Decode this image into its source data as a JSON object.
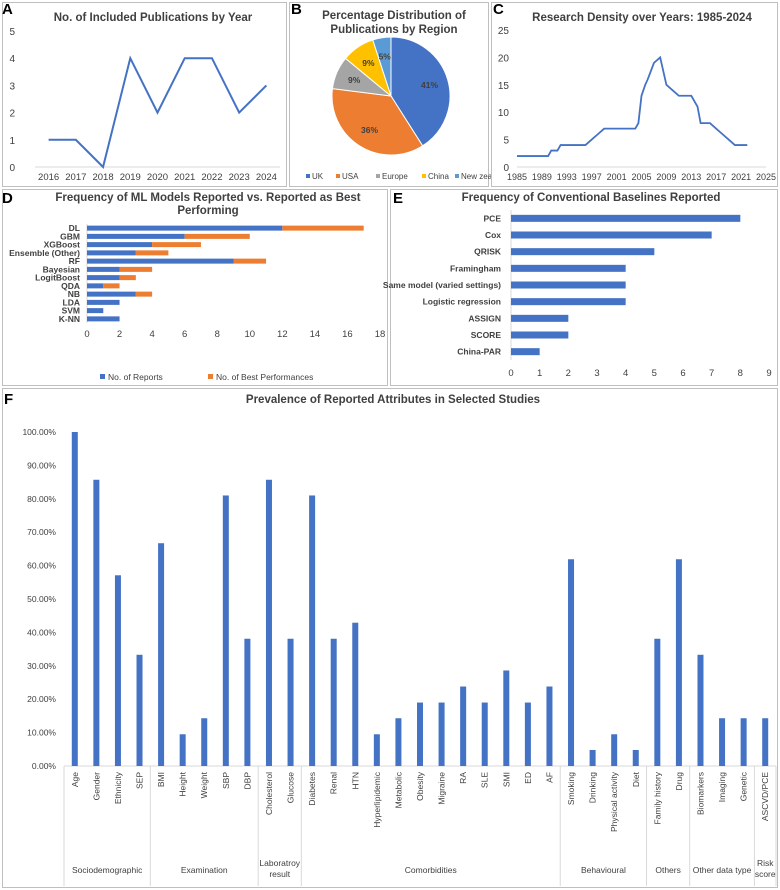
{
  "colors": {
    "blue": "#4472c4",
    "orange": "#ed7d31",
    "gray": "#a5a5a5",
    "gold": "#ffc000",
    "skyblue": "#5b9bd5",
    "axis": "#d9d9d9",
    "grid": "#d9d9d9",
    "text": "#404040"
  },
  "panels": {
    "a": "A",
    "b": "B",
    "c": "C",
    "d": "D",
    "e": "E",
    "f": "F"
  },
  "chart_data": [
    {
      "id": "A",
      "type": "line",
      "title": "No. of Included Publications by Year",
      "x": [
        "2016",
        "2017",
        "2018",
        "2019",
        "2020",
        "2021",
        "2022",
        "2023",
        "2024"
      ],
      "values": [
        1,
        1,
        0,
        4,
        2,
        4,
        4,
        2,
        3
      ],
      "ylim": [
        0,
        5
      ],
      "yticks": [
        "0",
        "1",
        "2",
        "3",
        "4",
        "5"
      ],
      "grid": false
    },
    {
      "id": "B",
      "type": "pie",
      "title": "Percentage Distribution of Publications by Region",
      "labels": [
        "UK",
        "USA",
        "Europe",
        "China",
        "New zealand"
      ],
      "values": [
        41,
        36,
        9,
        9,
        5
      ],
      "data_labels": [
        "41%",
        "36%",
        "9%",
        "9%",
        "5%"
      ],
      "legend": "bottom"
    },
    {
      "id": "C",
      "type": "line",
      "title": "Research Density over Years: 1985-2024",
      "xticks": [
        "1985",
        "1989",
        "1993",
        "1997",
        "2001",
        "2005",
        "2009",
        "2013",
        "2017",
        "2021",
        "2025"
      ],
      "points": [
        [
          1985,
          2
        ],
        [
          1986,
          2
        ],
        [
          1987,
          2
        ],
        [
          1988,
          2
        ],
        [
          1989,
          2
        ],
        [
          1990,
          2
        ],
        [
          1990.5,
          3
        ],
        [
          1991,
          3
        ],
        [
          1991.5,
          3
        ],
        [
          1992,
          4
        ],
        [
          1993,
          4
        ],
        [
          1994,
          4
        ],
        [
          1995,
          4
        ],
        [
          1996,
          4
        ],
        [
          1997,
          5
        ],
        [
          1998,
          6
        ],
        [
          1999,
          7
        ],
        [
          2000,
          7
        ],
        [
          2001,
          7
        ],
        [
          2002,
          7
        ],
        [
          2003,
          7
        ],
        [
          2004,
          7
        ],
        [
          2004.5,
          8
        ],
        [
          2005,
          13
        ],
        [
          2005.6,
          15
        ],
        [
          2006,
          16
        ],
        [
          2007,
          19
        ],
        [
          2008,
          20
        ],
        [
          2009,
          15
        ],
        [
          2010,
          14
        ],
        [
          2011,
          13
        ],
        [
          2012,
          13
        ],
        [
          2013,
          13
        ],
        [
          2014,
          11
        ],
        [
          2014.5,
          8
        ],
        [
          2015,
          8
        ],
        [
          2016,
          8
        ],
        [
          2017,
          7
        ],
        [
          2018,
          6
        ],
        [
          2019,
          5
        ],
        [
          2020,
          4
        ],
        [
          2021,
          4
        ],
        [
          2022,
          4
        ]
      ],
      "xlim": [
        1985,
        2025
      ],
      "ylim": [
        0,
        25
      ],
      "yticks": [
        "0",
        "5",
        "10",
        "15",
        "20",
        "25"
      ],
      "grid": false
    },
    {
      "id": "D",
      "type": "bar",
      "orientation": "horizontal",
      "stacked": true,
      "title": "Frequency of ML Models Reported vs. Reported as Best Performing",
      "title_lines": [
        "Frequency of ML Models Reported vs. Reported as Best",
        "Performing"
      ],
      "categories": [
        "DL",
        "GBM",
        "XGBoost",
        "Ensemble (Other)",
        "RF",
        "Bayesian",
        "LogitBoost",
        "QDA",
        "NB",
        "LDA",
        "SVM",
        "K-NN"
      ],
      "series": [
        {
          "name": "No. of Reports",
          "values": [
            12,
            6,
            4,
            3,
            9,
            2,
            2,
            1,
            3,
            2,
            1,
            2
          ]
        },
        {
          "name": "No. of Best Performances",
          "values": [
            5,
            4,
            3,
            2,
            2,
            2,
            1,
            1,
            1,
            0,
            0,
            0
          ]
        }
      ],
      "xlim": [
        0,
        18
      ],
      "xticks": [
        "0",
        "2",
        "4",
        "6",
        "8",
        "10",
        "12",
        "14",
        "16",
        "18"
      ],
      "legend": "bottom",
      "grid": false
    },
    {
      "id": "E",
      "type": "bar",
      "orientation": "horizontal",
      "title": "Frequency of Conventional Baselines Reported",
      "categories": [
        "PCE",
        "Cox",
        "QRISK",
        "Framingham",
        "Same model (varied settings)",
        "Logistic regression",
        "ASSIGN",
        "SCORE",
        "China-PAR"
      ],
      "values": [
        8,
        7,
        5,
        4,
        4,
        4,
        2,
        2,
        1
      ],
      "xlim": [
        0,
        9
      ],
      "xticks": [
        "0",
        "1",
        "2",
        "3",
        "4",
        "5",
        "6",
        "7",
        "8",
        "9"
      ],
      "grid": false
    },
    {
      "id": "F",
      "type": "bar",
      "title": "Prevalence of Reported Attributes in Selected Studies",
      "categories": [
        "Age",
        "Gender",
        "Ethnicity",
        "SEP",
        "BMI",
        "Height",
        "Weight",
        "SBP",
        "DBP",
        "Cholesterol",
        "Glucose",
        "Diabetes",
        "Renal",
        "HTN",
        "Hyperlipidemic",
        "Metabolic",
        "Obesity",
        "Migraine",
        "RA",
        "SLE",
        "SMI",
        "ED",
        "AF",
        "Smoking",
        "Drinking",
        "Physical activity",
        "Diet",
        "Family history",
        "Drug",
        "Biomarkers",
        "Imaging",
        "Genetic",
        "ASCVD/PCE"
      ],
      "values": [
        100,
        85.7,
        57.1,
        33.3,
        66.7,
        9.5,
        14.3,
        81,
        38.1,
        85.7,
        38.1,
        81,
        38.1,
        42.9,
        9.5,
        14.3,
        19,
        19,
        23.8,
        19,
        28.6,
        19,
        23.8,
        61.9,
        4.8,
        9.5,
        4.8,
        38.1,
        61.9,
        33.3,
        14.3,
        14.3,
        14.3
      ],
      "ylim": [
        0,
        100
      ],
      "yticks": [
        "0.00%",
        "10.00%",
        "20.00%",
        "30.00%",
        "40.00%",
        "50.00%",
        "60.00%",
        "70.00%",
        "80.00%",
        "90.00%",
        "100.00%"
      ],
      "groups": [
        {
          "label_lines": [
            "Sociodemographic"
          ],
          "count": 4
        },
        {
          "label_lines": [
            "Examination"
          ],
          "count": 5
        },
        {
          "label_lines": [
            "Laboratroy",
            "result"
          ],
          "count": 2
        },
        {
          "label_lines": [
            "Comorbidities"
          ],
          "count": 12
        },
        {
          "label_lines": [
            "Behavioural"
          ],
          "count": 4
        },
        {
          "label_lines": [
            "Others"
          ],
          "count": 2
        },
        {
          "label_lines": [
            "Other data type"
          ],
          "count": 3
        },
        {
          "label_lines": [
            "Risk",
            "score"
          ],
          "count": 1
        }
      ],
      "grid": false
    }
  ]
}
